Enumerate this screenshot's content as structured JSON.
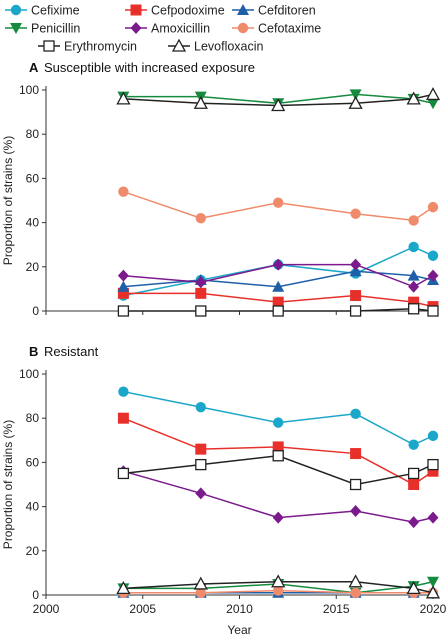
{
  "chart_data": [
    {
      "type": "line",
      "panel_letter": "A",
      "title": "Susceptible with increased exposure",
      "xlabel": "",
      "ylabel": "Proportion of strains (%)",
      "xlim": [
        2000,
        2020
      ],
      "ylim": [
        0,
        100
      ],
      "yticks": [
        0,
        20,
        40,
        60,
        80,
        100
      ],
      "x": [
        2004,
        2008,
        2012,
        2016,
        2019,
        2020
      ],
      "series": [
        {
          "name": "Cefixime",
          "color": "#1aa7c9",
          "marker": "circle",
          "values": [
            7,
            14,
            21,
            17,
            29,
            25
          ]
        },
        {
          "name": "Cefpodoxime",
          "color": "#e8302a",
          "marker": "square",
          "values": [
            8,
            8,
            4,
            7,
            4,
            2
          ]
        },
        {
          "name": "Cefditoren",
          "color": "#1f5fa8",
          "marker": "triangle-up",
          "values": [
            11,
            14,
            11,
            18,
            16,
            14
          ]
        },
        {
          "name": "Penicillin",
          "color": "#168a3e",
          "marker": "triangle-down",
          "values": [
            97,
            97,
            94,
            98,
            96,
            94
          ]
        },
        {
          "name": "Amoxicillin",
          "color": "#7b1a8c",
          "marker": "diamond",
          "values": [
            16,
            13,
            21,
            21,
            11,
            16
          ]
        },
        {
          "name": "Cefotaxime",
          "color": "#ef8a6b",
          "marker": "circle",
          "values": [
            54,
            42,
            49,
            44,
            41,
            47
          ]
        },
        {
          "name": "Erythromycin",
          "color": "#222222",
          "marker": "square-open",
          "values": [
            0,
            0,
            0,
            0,
            1,
            0
          ]
        },
        {
          "name": "Levofloxacin",
          "color": "#222222",
          "marker": "triangle-open",
          "values": [
            96,
            94,
            93,
            94,
            96,
            98
          ]
        }
      ]
    },
    {
      "type": "line",
      "panel_letter": "B",
      "title": "Resistant",
      "xlabel": "Year",
      "ylabel": "Proportion of strains (%)",
      "xlim": [
        2000,
        2020
      ],
      "ylim": [
        0,
        100
      ],
      "yticks": [
        0,
        20,
        40,
        60,
        80,
        100
      ],
      "xticks": [
        2000,
        2005,
        2010,
        2015,
        2020
      ],
      "x": [
        2004,
        2008,
        2012,
        2016,
        2019,
        2020
      ],
      "series": [
        {
          "name": "Cefixime",
          "color": "#1aa7c9",
          "marker": "circle",
          "values": [
            92,
            85,
            78,
            82,
            68,
            72
          ]
        },
        {
          "name": "Cefpodoxime",
          "color": "#e8302a",
          "marker": "square",
          "values": [
            80,
            66,
            67,
            64,
            50,
            56
          ]
        },
        {
          "name": "Cefditoren",
          "color": "#1f5fa8",
          "marker": "triangle-up",
          "values": [
            1,
            1,
            1,
            1,
            1,
            1
          ]
        },
        {
          "name": "Penicillin",
          "color": "#168a3e",
          "marker": "triangle-down",
          "values": [
            3,
            3,
            5,
            1,
            4,
            6
          ]
        },
        {
          "name": "Amoxicillin",
          "color": "#7b1a8c",
          "marker": "diamond",
          "values": [
            56,
            46,
            35,
            38,
            33,
            35
          ]
        },
        {
          "name": "Cefotaxime",
          "color": "#ef8a6b",
          "marker": "circle",
          "values": [
            1,
            1,
            2,
            1,
            1,
            1
          ]
        },
        {
          "name": "Erythromycin",
          "color": "#222222",
          "marker": "square-open",
          "values": [
            55,
            59,
            63,
            50,
            55,
            59
          ]
        },
        {
          "name": "Levofloxacin",
          "color": "#222222",
          "marker": "triangle-open",
          "values": [
            3,
            5,
            6,
            6,
            3,
            1
          ]
        }
      ]
    }
  ]
}
